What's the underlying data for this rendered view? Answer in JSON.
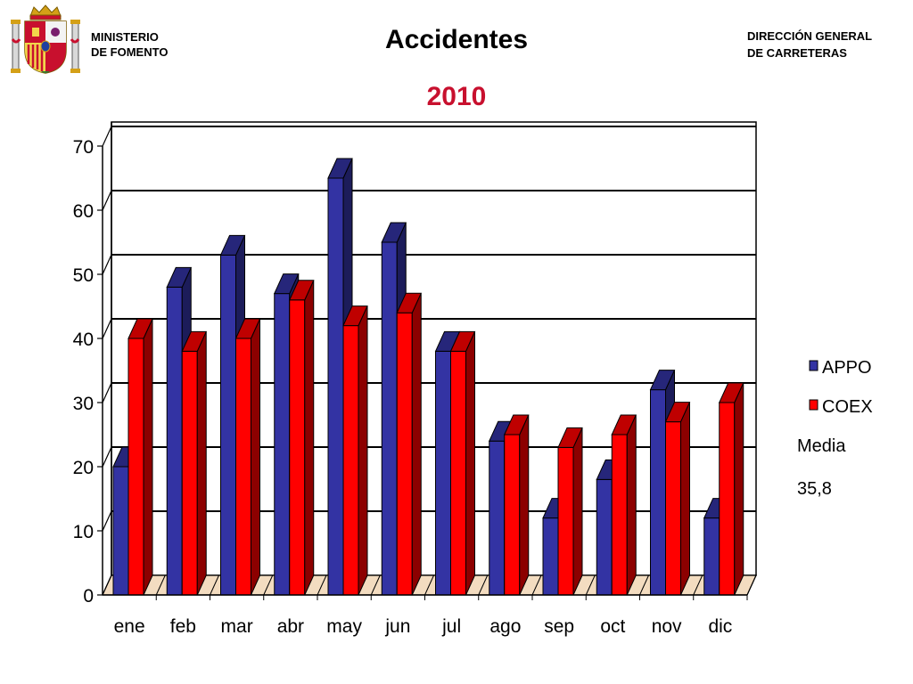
{
  "header": {
    "ministry_line1": "MINISTERIO",
    "ministry_line2": "DE FOMENTO",
    "direction_line1": "DIRECCIÓN GENERAL",
    "direction_line2": "DE CARRETERAS",
    "crest_icon": "spain-coat-of-arms-icon"
  },
  "side_note": {
    "label": "Media",
    "value": "35,8"
  },
  "chart_data": {
    "type": "bar",
    "title": "Accidentes",
    "subtitle": "2010",
    "xlabel": "",
    "ylabel": "",
    "ylim": [
      0,
      70
    ],
    "yticks": [
      "0",
      "10",
      "20",
      "30",
      "40",
      "50",
      "60",
      "70"
    ],
    "grid": true,
    "legend_position": "right",
    "categories": [
      "ene",
      "feb",
      "mar",
      "abr",
      "may",
      "jun",
      "jul",
      "ago",
      "sep",
      "oct",
      "nov",
      "dic"
    ],
    "series": [
      {
        "name": "APPO",
        "color": "#3333a3",
        "values": [
          20,
          48,
          53,
          47,
          65,
          55,
          38,
          24,
          12,
          18,
          32,
          12
        ]
      },
      {
        "name": "COEX",
        "color": "#ff0000",
        "values": [
          40,
          38,
          40,
          46,
          42,
          44,
          38,
          25,
          23,
          25,
          27,
          30
        ]
      }
    ]
  }
}
